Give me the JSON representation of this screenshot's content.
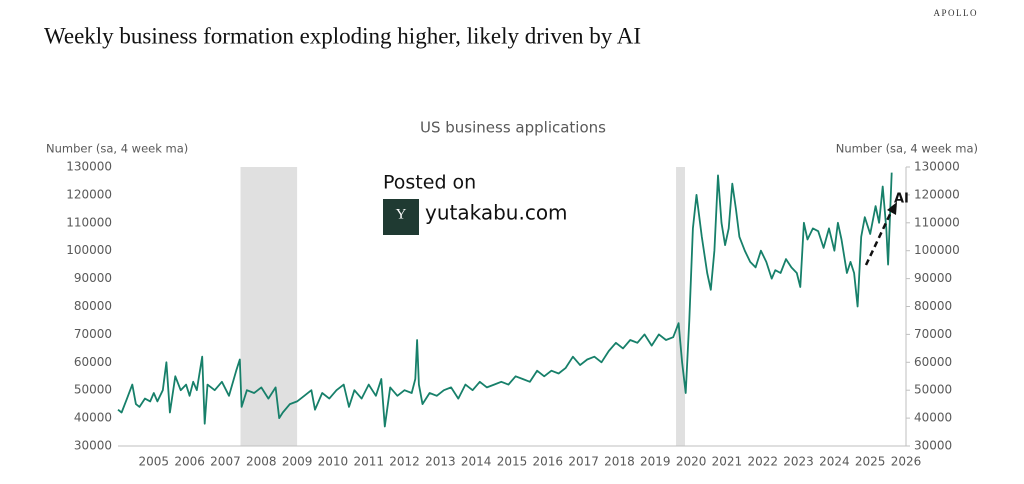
{
  "brand": "APOLLO",
  "headline": "Weekly business formation exploding higher, likely driven by AI",
  "watermark": {
    "line1": "Posted on",
    "line2": "yutakabu.com"
  },
  "chart_data": {
    "type": "line",
    "title": "US business applications",
    "ylabel": "Number (sa, 4 week ma)",
    "y2label": "Number (sa, 4 week ma)",
    "annotation": "AI",
    "x": [
      2004.5,
      2004.6,
      2004.75,
      2004.9,
      2005.0,
      2005.1,
      2005.25,
      2005.4,
      2005.5,
      2005.6,
      2005.75,
      2005.85,
      2005.95,
      2006.1,
      2006.25,
      2006.4,
      2006.5,
      2006.6,
      2006.7,
      2006.85,
      2006.92,
      2007.0,
      2007.2,
      2007.4,
      2007.6,
      2007.8,
      2007.9,
      2007.95,
      2008.1,
      2008.3,
      2008.5,
      2008.7,
      2008.9,
      2009.0,
      2009.1,
      2009.3,
      2009.5,
      2009.7,
      2009.9,
      2010.0,
      2010.2,
      2010.4,
      2010.6,
      2010.8,
      2010.95,
      2011.1,
      2011.3,
      2011.5,
      2011.7,
      2011.85,
      2011.95,
      2012.1,
      2012.3,
      2012.5,
      2012.7,
      2012.8,
      2012.85,
      2012.9,
      2013.0,
      2013.2,
      2013.4,
      2013.6,
      2013.8,
      2014.0,
      2014.2,
      2014.4,
      2014.6,
      2014.8,
      2015.0,
      2015.2,
      2015.4,
      2015.6,
      2015.8,
      2016.0,
      2016.2,
      2016.4,
      2016.6,
      2016.8,
      2017.0,
      2017.2,
      2017.4,
      2017.6,
      2017.8,
      2018.0,
      2018.2,
      2018.4,
      2018.6,
      2018.8,
      2019.0,
      2019.2,
      2019.4,
      2019.6,
      2019.8,
      2020.0,
      2020.15,
      2020.25,
      2020.35,
      2020.45,
      2020.55,
      2020.65,
      2020.8,
      2020.95,
      2021.05,
      2021.15,
      2021.25,
      2021.35,
      2021.45,
      2021.55,
      2021.65,
      2021.75,
      2021.85,
      2022.0,
      2022.15,
      2022.3,
      2022.45,
      2022.6,
      2022.75,
      2022.85,
      2023.0,
      2023.15,
      2023.3,
      2023.45,
      2023.55,
      2023.65,
      2023.75,
      2023.9,
      2024.05,
      2024.2,
      2024.35,
      2024.5,
      2024.6,
      2024.7,
      2024.85,
      2024.95,
      2025.05,
      2025.15,
      2025.25,
      2025.35,
      2025.5,
      2025.65,
      2025.75,
      2025.85,
      2025.95,
      2026.0,
      2026.1
    ],
    "series": [
      {
        "name": "US business applications",
        "color": "#17806a",
        "values": [
          43000,
          42000,
          47000,
          52000,
          45000,
          44000,
          47000,
          46000,
          49000,
          46000,
          50000,
          60000,
          42000,
          55000,
          50000,
          52000,
          48000,
          53000,
          50000,
          62000,
          38000,
          52000,
          50000,
          53000,
          48000,
          57000,
          61000,
          44000,
          50000,
          49000,
          51000,
          47000,
          51000,
          40000,
          42000,
          45000,
          46000,
          48000,
          50000,
          43000,
          49000,
          47000,
          50000,
          52000,
          44000,
          50000,
          47000,
          52000,
          48000,
          54000,
          37000,
          51000,
          48000,
          50000,
          49000,
          54000,
          68000,
          52000,
          45000,
          49000,
          48000,
          50000,
          51000,
          47000,
          52000,
          50000,
          53000,
          51000,
          52000,
          53000,
          52000,
          55000,
          54000,
          53000,
          57000,
          55000,
          57000,
          56000,
          58000,
          62000,
          59000,
          61000,
          62000,
          60000,
          64000,
          67000,
          65000,
          68000,
          67000,
          70000,
          66000,
          70000,
          68000,
          69000,
          74000,
          60000,
          49000,
          75000,
          108000,
          120000,
          105000,
          92000,
          86000,
          100000,
          127000,
          110000,
          102000,
          108000,
          124000,
          115000,
          105000,
          100000,
          96000,
          94000,
          100000,
          96000,
          90000,
          93000,
          92000,
          97000,
          94000,
          92000,
          87000,
          110000,
          104000,
          108000,
          107000,
          101000,
          108000,
          100000,
          110000,
          104000,
          92000,
          96000,
          92000,
          80000,
          105000,
          112000,
          106000,
          116000,
          110000,
          123000,
          108000,
          95000,
          128000
        ]
      }
    ],
    "shaded": [
      [
        2007.92,
        2009.5
      ],
      [
        2020.08,
        2020.33
      ]
    ],
    "shade_color": "#e0e0e0",
    "xlim": [
      2004.5,
      2026.5
    ],
    "xticks": [
      {
        "value": 2005.5,
        "label": "2005"
      },
      {
        "value": 2006.5,
        "label": "2006"
      },
      {
        "value": 2007.5,
        "label": "2007"
      },
      {
        "value": 2008.5,
        "label": "2008"
      },
      {
        "value": 2009.5,
        "label": "2009"
      },
      {
        "value": 2010.5,
        "label": "2010"
      },
      {
        "value": 2011.5,
        "label": "2011"
      },
      {
        "value": 2012.5,
        "label": "2012"
      },
      {
        "value": 2013.5,
        "label": "2013"
      },
      {
        "value": 2014.5,
        "label": "2014"
      },
      {
        "value": 2015.5,
        "label": "2015"
      },
      {
        "value": 2016.5,
        "label": "2016"
      },
      {
        "value": 2017.5,
        "label": "2017"
      },
      {
        "value": 2018.5,
        "label": "2018"
      },
      {
        "value": 2019.5,
        "label": "2019"
      },
      {
        "value": 2020.5,
        "label": "2020"
      },
      {
        "value": 2021.5,
        "label": "2021"
      },
      {
        "value": 2022.5,
        "label": "2022"
      },
      {
        "value": 2023.5,
        "label": "2023"
      },
      {
        "value": 2024.5,
        "label": "2024"
      },
      {
        "value": 2025.5,
        "label": "2025"
      },
      {
        "value": 2026.5,
        "label": "2026"
      }
    ],
    "ylim": [
      30000,
      130000
    ],
    "yticks": [
      30000,
      40000,
      50000,
      60000,
      70000,
      80000,
      90000,
      100000,
      110000,
      120000,
      130000
    ],
    "y2lim": [
      30000,
      130000
    ],
    "y2ticks": [
      30000,
      40000,
      50000,
      60000,
      70000,
      80000,
      90000,
      100000,
      110000,
      120000,
      130000
    ]
  }
}
